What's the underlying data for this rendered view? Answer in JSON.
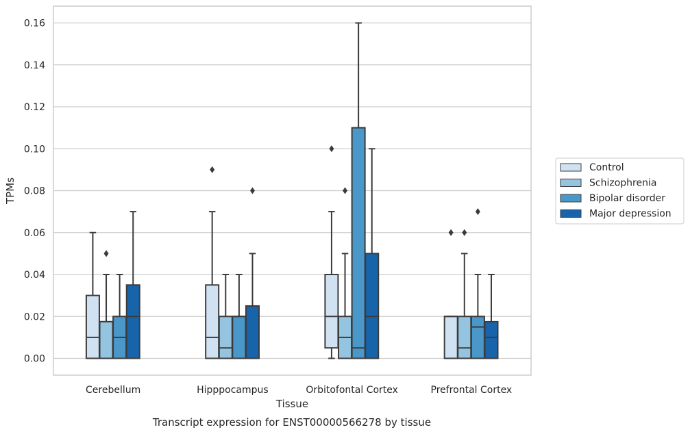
{
  "chart_data": {
    "type": "box",
    "title": "",
    "caption": "Transcript expression for ENST00000566278 by tissue",
    "xlabel": "Tissue",
    "ylabel": "TPMs",
    "ylim": [
      -0.008,
      0.168
    ],
    "yticks": [
      "0.00",
      "0.02",
      "0.04",
      "0.06",
      "0.08",
      "0.10",
      "0.12",
      "0.14",
      "0.16"
    ],
    "grid": "horizontal",
    "legend_position": "right",
    "categories": [
      "Cerebellum",
      "Hipppocampus",
      "Orbitofontal Cortex",
      "Prefrontal Cortex"
    ],
    "series": [
      {
        "name": "Control",
        "color": "#d0e1f2",
        "boxes": [
          {
            "whislo": 0.0,
            "q1": 0.0,
            "med": 0.01,
            "q3": 0.03,
            "whishi": 0.06,
            "fliers": []
          },
          {
            "whislo": 0.0,
            "q1": 0.0,
            "med": 0.01,
            "q3": 0.035,
            "whishi": 0.07,
            "fliers": [
              0.09
            ]
          },
          {
            "whislo": 0.0,
            "q1": 0.005,
            "med": 0.02,
            "q3": 0.04,
            "whishi": 0.07,
            "fliers": [
              0.1
            ]
          },
          {
            "whislo": 0.0,
            "q1": 0.0,
            "med": 0.02,
            "q3": 0.02,
            "whishi": 0.02,
            "fliers": [
              0.06
            ]
          }
        ]
      },
      {
        "name": "Schizophrenia",
        "color": "#94c4df",
        "boxes": [
          {
            "whislo": 0.0,
            "q1": 0.0,
            "med": 0.0175,
            "q3": 0.0175,
            "whishi": 0.04,
            "fliers": [
              0.05
            ]
          },
          {
            "whislo": 0.0,
            "q1": 0.0,
            "med": 0.005,
            "q3": 0.02,
            "whishi": 0.04,
            "fliers": []
          },
          {
            "whislo": 0.0,
            "q1": 0.0,
            "med": 0.01,
            "q3": 0.02,
            "whishi": 0.05,
            "fliers": [
              0.08
            ]
          },
          {
            "whislo": 0.0,
            "q1": 0.0,
            "med": 0.005,
            "q3": 0.02,
            "whishi": 0.05,
            "fliers": [
              0.06
            ]
          }
        ]
      },
      {
        "name": "Bipolar disorder",
        "color": "#4a98c9",
        "boxes": [
          {
            "whislo": 0.0,
            "q1": 0.0,
            "med": 0.01,
            "q3": 0.02,
            "whishi": 0.04,
            "fliers": []
          },
          {
            "whislo": 0.0,
            "q1": 0.0,
            "med": 0.02,
            "q3": 0.02,
            "whishi": 0.04,
            "fliers": []
          },
          {
            "whislo": 0.0,
            "q1": 0.0,
            "med": 0.005,
            "q3": 0.11,
            "whishi": 0.16,
            "fliers": []
          },
          {
            "whislo": 0.0,
            "q1": 0.0,
            "med": 0.015,
            "q3": 0.02,
            "whishi": 0.04,
            "fliers": [
              0.07
            ]
          }
        ]
      },
      {
        "name": "Major depression",
        "color": "#1764ab",
        "boxes": [
          {
            "whislo": 0.0,
            "q1": 0.0,
            "med": 0.02,
            "q3": 0.035,
            "whishi": 0.07,
            "fliers": []
          },
          {
            "whislo": 0.0,
            "q1": 0.0,
            "med": 0.025,
            "q3": 0.025,
            "whishi": 0.05,
            "fliers": [
              0.08
            ]
          },
          {
            "whislo": 0.0,
            "q1": 0.0,
            "med": 0.02,
            "q3": 0.05,
            "whishi": 0.1,
            "fliers": []
          },
          {
            "whislo": 0.0,
            "q1": 0.0,
            "med": 0.01,
            "q3": 0.0175,
            "whishi": 0.04,
            "fliers": []
          }
        ]
      }
    ]
  }
}
